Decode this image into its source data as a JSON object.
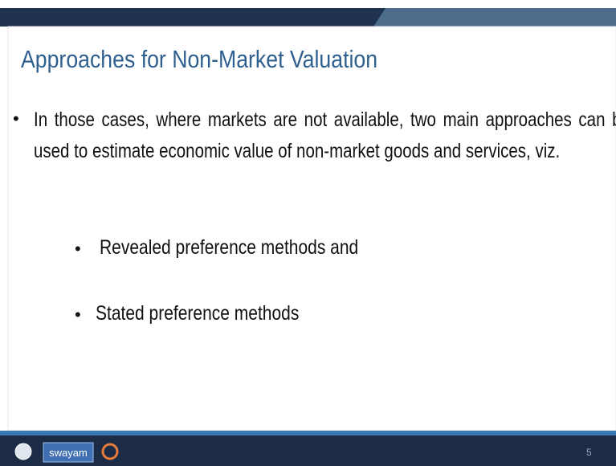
{
  "slide": {
    "title": "Approaches for Non-Market Valuation",
    "body": "In those cases, where markets are not available, two main approaches can be used to estimate economic value of non-market goods and services, viz.",
    "sub_bullets": [
      "Revealed preference methods and",
      "Stated preference methods"
    ],
    "footer": {
      "logo_text": "swayam",
      "page_number": "5"
    }
  }
}
